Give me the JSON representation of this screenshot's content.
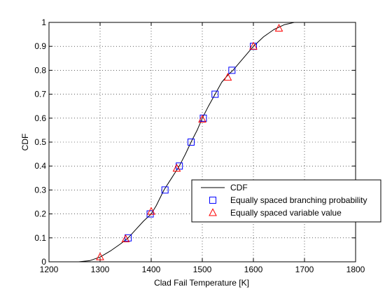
{
  "chart_data": {
    "type": "line",
    "title": "",
    "xlabel": "Clad Fail Temperature [K]",
    "ylabel": "CDF",
    "xlim": [
      1200,
      1800
    ],
    "ylim": [
      0,
      1
    ],
    "xticks": [
      1200,
      1300,
      1400,
      1500,
      1600,
      1700,
      1800
    ],
    "yticks": [
      0,
      0.1,
      0.2,
      0.3,
      0.4,
      0.5,
      0.6,
      0.7,
      0.8,
      0.9,
      1
    ],
    "grid": true,
    "legend_position": "bottom-right",
    "series": [
      {
        "name": "CDF",
        "marker": "none",
        "color": "#000000",
        "x": [
          1258,
          1280,
          1300,
          1320,
          1340,
          1355,
          1370,
          1385,
          1400,
          1410,
          1425,
          1440,
          1455,
          1467,
          1478,
          1490,
          1500,
          1512,
          1525,
          1538,
          1550,
          1560,
          1580,
          1600,
          1620,
          1640,
          1660,
          1680,
          1690
        ],
        "y": [
          0.0,
          0.005,
          0.02,
          0.045,
          0.075,
          0.1,
          0.135,
          0.17,
          0.2,
          0.235,
          0.3,
          0.35,
          0.4,
          0.45,
          0.5,
          0.55,
          0.6,
          0.65,
          0.7,
          0.75,
          0.78,
          0.8,
          0.85,
          0.9,
          0.94,
          0.97,
          0.99,
          1.0,
          1.0
        ]
      },
      {
        "name": "Equally spaced branching probability",
        "marker": "square",
        "color": "#0000ff",
        "x": [
          1355,
          1398,
          1427,
          1455,
          1478,
          1502,
          1525,
          1558,
          1600
        ],
        "y": [
          0.1,
          0.2,
          0.3,
          0.4,
          0.5,
          0.6,
          0.7,
          0.8,
          0.9
        ]
      },
      {
        "name": "Equally spaced variable value",
        "marker": "triangle",
        "color": "#ff0000",
        "x": [
          1300,
          1350,
          1400,
          1450,
          1500,
          1550,
          1600,
          1650
        ],
        "y": [
          0.02,
          0.095,
          0.21,
          0.39,
          0.595,
          0.77,
          0.9,
          0.975
        ]
      }
    ]
  }
}
